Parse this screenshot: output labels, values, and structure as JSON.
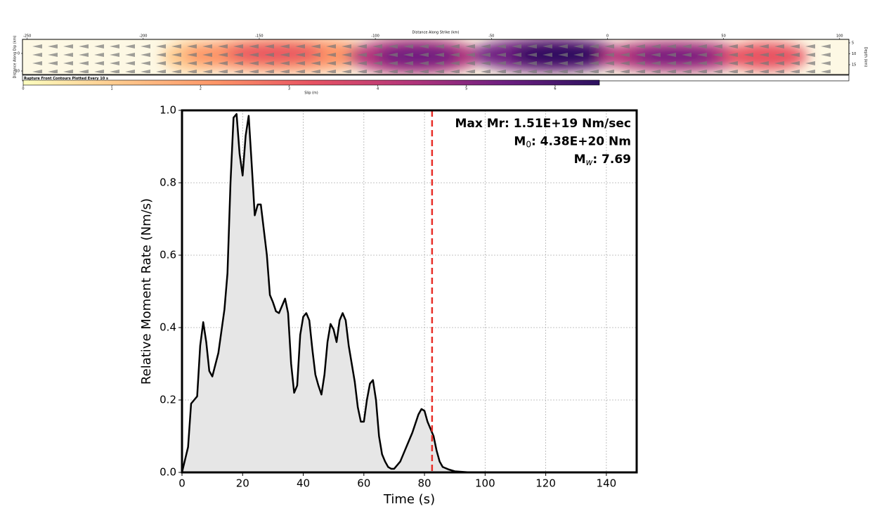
{
  "chart_data": [
    {
      "type": "heatmap",
      "xlabel": "Distance Along Strike (km)",
      "ylabel": "Distance Along Dip (km)",
      "y2label": "Depth (km)",
      "xlim": [
        -252,
        104
      ],
      "xticks": [
        -250,
        -200,
        -150,
        -100,
        -50,
        0,
        50,
        100
      ],
      "ylim": [
        -8,
        12
      ],
      "yticks": [
        0,
        10
      ],
      "y2lim": [
        3.4,
        19.5
      ],
      "y2ticks": [
        5,
        10,
        15
      ],
      "legend": "Rupture Front Contours Plotted Every 10 s",
      "colorbar": {
        "label": "Slip (m)",
        "lim": [
          0,
          6.5
        ],
        "ticks": [
          0,
          1,
          2,
          3,
          4,
          5,
          6
        ],
        "colors": [
          "#fcfdbf",
          "#fec98d",
          "#fd9567",
          "#e85362",
          "#b5367a",
          "#6e1f81",
          "#2c115f"
        ]
      }
    },
    {
      "type": "line",
      "xlabel": "Time (s)",
      "ylabel": "Relative Moment Rate (Nm/s)",
      "xlim": [
        0,
        150
      ],
      "xticks": [
        0,
        20,
        40,
        60,
        80,
        100,
        120,
        140
      ],
      "ylim": [
        0,
        1
      ],
      "yticks": [
        {
          "value": 0,
          "label": "0.0"
        },
        0.2,
        0.4,
        0.6,
        0.8,
        {
          "value": 1,
          "label": "1.0"
        }
      ],
      "grid": true,
      "color": "#000000",
      "fill": "#e6e6e6",
      "vline": {
        "x": 82.5,
        "color": "#e8302a"
      },
      "annotations": [
        {
          "text": "Max Mr: 1.51E+19 Nm/sec"
        },
        {
          "text": "M",
          "sub": "0",
          "rest": ": 4.38E+20 Nm"
        },
        {
          "text": "M",
          "sub": "w",
          "rest": ": 7.69"
        }
      ],
      "x": [
        0,
        2,
        3,
        4,
        5,
        6,
        7,
        8,
        9,
        10,
        12,
        14,
        15,
        16,
        17,
        18,
        19,
        20,
        21,
        22,
        23,
        24,
        25,
        26,
        27,
        28,
        29,
        30,
        31,
        32,
        33,
        34,
        35,
        36,
        37,
        38,
        39,
        40,
        41,
        42,
        43,
        44,
        45,
        46,
        47,
        48,
        49,
        50,
        51,
        52,
        53,
        54,
        55,
        56,
        57,
        58,
        59,
        60,
        61,
        62,
        63,
        64,
        65,
        66,
        67,
        68,
        69,
        70,
        72,
        74,
        76,
        78,
        79,
        80,
        81,
        82,
        83,
        84,
        85,
        86,
        88,
        90,
        95,
        100,
        150
      ],
      "values": [
        0,
        0.07,
        0.19,
        0.2,
        0.21,
        0.35,
        0.415,
        0.36,
        0.28,
        0.265,
        0.33,
        0.45,
        0.55,
        0.8,
        0.98,
        0.99,
        0.88,
        0.82,
        0.93,
        0.985,
        0.85,
        0.71,
        0.74,
        0.74,
        0.67,
        0.6,
        0.49,
        0.47,
        0.445,
        0.44,
        0.46,
        0.48,
        0.44,
        0.3,
        0.22,
        0.24,
        0.38,
        0.43,
        0.44,
        0.42,
        0.34,
        0.27,
        0.24,
        0.215,
        0.27,
        0.36,
        0.41,
        0.395,
        0.36,
        0.42,
        0.44,
        0.42,
        0.35,
        0.3,
        0.25,
        0.18,
        0.14,
        0.14,
        0.2,
        0.245,
        0.255,
        0.2,
        0.1,
        0.05,
        0.03,
        0.015,
        0.01,
        0.01,
        0.03,
        0.07,
        0.11,
        0.16,
        0.175,
        0.17,
        0.14,
        0.12,
        0.1,
        0.06,
        0.03,
        0.015,
        0.008,
        0.003,
        0,
        0,
        0
      ]
    }
  ]
}
